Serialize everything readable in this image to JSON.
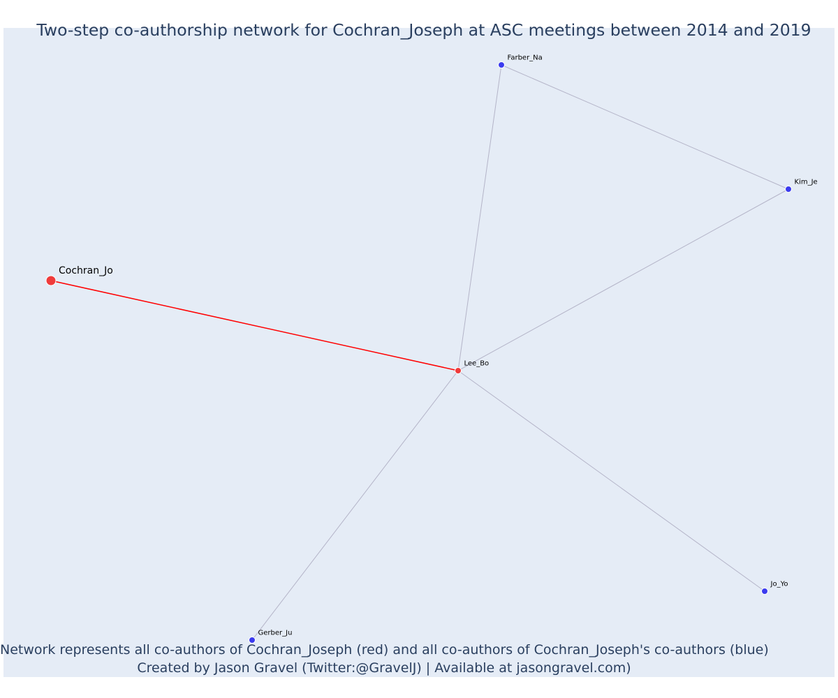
{
  "title": "Two-step co-authorship network for Cochran_Joseph at ASC meetings between 2014 and 2019",
  "caption": {
    "line1": "Network represents all co-authors of Cochran_Joseph (red) and all co-authors of Cochran_Joseph's co-authors (blue)",
    "line2": "Created by Jason Gravel (Twitter:@GravelJ) | Available at jasongravel.com)"
  },
  "colors": {
    "background": "#e5ecf6",
    "direct_node": "#ef3b3b",
    "indirect_node": "#3b3bef",
    "direct_edge": "#ff0000",
    "indirect_edge": "#b4b4c8",
    "text": "#2a3f5f"
  },
  "chart_data": {
    "type": "network",
    "nodes": [
      {
        "id": "Cochran_Jo",
        "label": "Cochran_Jo",
        "group": "focal"
      },
      {
        "id": "Lee_Bo",
        "label": "Lee_Bo",
        "group": "coauthor"
      },
      {
        "id": "Farber_Na",
        "label": "Farber_Na",
        "group": "second_step"
      },
      {
        "id": "Kim_Je",
        "label": "Kim_Je",
        "group": "second_step"
      },
      {
        "id": "Jo_Yo",
        "label": "Jo_Yo",
        "group": "second_step"
      },
      {
        "id": "Gerber_Ju",
        "label": "Gerber_Ju",
        "group": "second_step"
      }
    ],
    "edges": [
      {
        "source": "Cochran_Jo",
        "target": "Lee_Bo",
        "type": "direct"
      },
      {
        "source": "Lee_Bo",
        "target": "Farber_Na",
        "type": "indirect"
      },
      {
        "source": "Lee_Bo",
        "target": "Kim_Je",
        "type": "indirect"
      },
      {
        "source": "Lee_Bo",
        "target": "Jo_Yo",
        "type": "indirect"
      },
      {
        "source": "Lee_Bo",
        "target": "Gerber_Ju",
        "type": "indirect"
      },
      {
        "source": "Farber_Na",
        "target": "Kim_Je",
        "type": "indirect"
      }
    ]
  }
}
